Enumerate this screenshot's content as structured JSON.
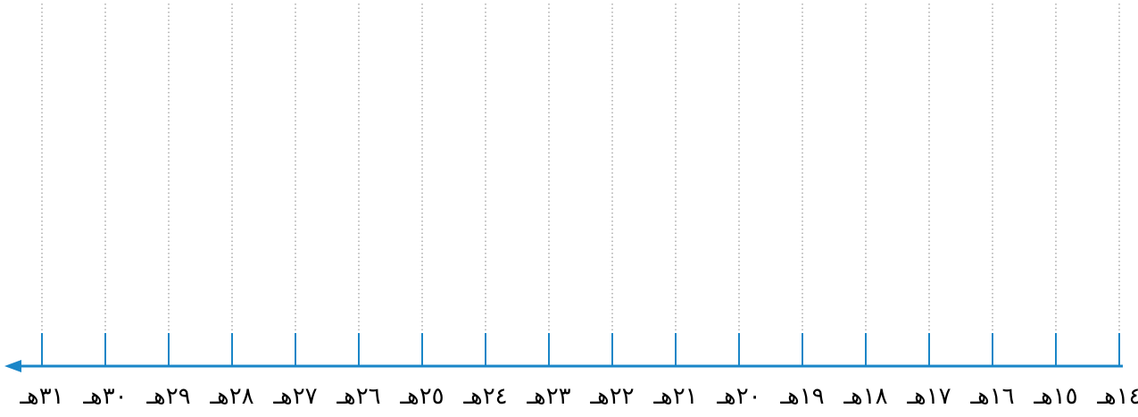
{
  "timeline": {
    "direction": "right-to-left",
    "line_color": "#1a86c8",
    "gridline_color": "#a6a6a6",
    "label_color": "#000000",
    "ticks": [
      {
        "label": "١٤هـ"
      },
      {
        "label": "١٥هـ"
      },
      {
        "label": "١٦هـ"
      },
      {
        "label": "١٧هـ"
      },
      {
        "label": "١٨هـ"
      },
      {
        "label": "١٩هـ"
      },
      {
        "label": "٢٠هـ"
      },
      {
        "label": "٢١هـ"
      },
      {
        "label": "٢٢هـ"
      },
      {
        "label": "٢٣هـ"
      },
      {
        "label": "٢٤هـ"
      },
      {
        "label": "٢٥هـ"
      },
      {
        "label": "٢٦هـ"
      },
      {
        "label": "٢٧هـ"
      },
      {
        "label": "٢٨هـ"
      },
      {
        "label": "٢٩هـ"
      },
      {
        "label": "٣٠هـ"
      },
      {
        "label": "٣١هـ"
      }
    ]
  }
}
